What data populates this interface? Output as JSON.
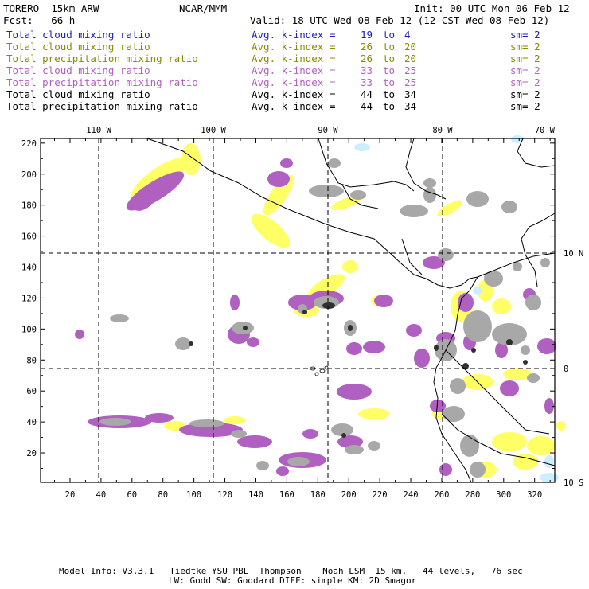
{
  "header": {
    "model": "TORERO  15km ARW",
    "center": "NCAR/MMM",
    "init": "Init: 00 UTC Mon 06 Feb 12",
    "fcst": "Fcst:   66 h",
    "valid": "Valid: 18 UTC Wed 08 Feb 12 (12 CST Wed 08 Feb 12)"
  },
  "legend": [
    {
      "field": "Total cloud mixing ratio",
      "stat": "Avg. k-index =",
      "a": "19",
      "to": "to",
      "b": "4",
      "sm": "sm= 2",
      "color": "#2020c0"
    },
    {
      "field": "Total cloud mixing ratio",
      "stat": "Avg. k-index =",
      "a": "26",
      "to": "to",
      "b": "20",
      "sm": "sm= 2",
      "color": "#8a8a00"
    },
    {
      "field": "Total precipitation mixing ratio",
      "stat": "Avg. k-index =",
      "a": "26",
      "to": "to",
      "b": "20",
      "sm": "sm= 2",
      "color": "#8a8a00"
    },
    {
      "field": "Total cloud mixing ratio",
      "stat": "Avg. k-index =",
      "a": "33",
      "to": "to",
      "b": "25",
      "sm": "sm= 2",
      "color": "#b060c0"
    },
    {
      "field": "Total precipitation mixing ratio",
      "stat": "Avg. k-index =",
      "a": "33",
      "to": "to",
      "b": "25",
      "sm": "sm= 2",
      "color": "#b060c0"
    },
    {
      "field": "Total cloud mixing ratio",
      "stat": "Avg. k-index =",
      "a": "44",
      "to": "to",
      "b": "34",
      "sm": "sm= 2",
      "color": "#000000"
    },
    {
      "field": "Total precipitation mixing ratio",
      "stat": "Avg. k-index =",
      "a": "44",
      "to": "to",
      "b": "34",
      "sm": "sm= 2",
      "color": "#000000"
    }
  ],
  "axes": {
    "top": [
      "110 W",
      "100 W",
      "90 W",
      "80 W",
      "70 W"
    ],
    "right": [
      "10 N",
      "0",
      "10 S"
    ],
    "left": [
      "220",
      "200",
      "180",
      "160",
      "140",
      "120",
      "100",
      "80",
      "60",
      "40",
      "20"
    ],
    "bottom": [
      "20",
      "40",
      "60",
      "80",
      "100",
      "120",
      "140",
      "160",
      "180",
      "200",
      "220",
      "240",
      "260",
      "280",
      "300",
      "320"
    ]
  },
  "colors": {
    "yellow": "#ffff66",
    "purple": "#b060c0",
    "gray": "#a8a8a8",
    "dark": "#303030",
    "cyan": "#cceeff"
  },
  "footer": {
    "line1": "Model Info: V3.3.1   Tiedtke YSU PBL  Thompson    Noah LSM  15 km,   44 levels,   76 sec",
    "line2": "LW: Godd SW: Goddard DIFF: simple KM: 2D Smagor"
  }
}
